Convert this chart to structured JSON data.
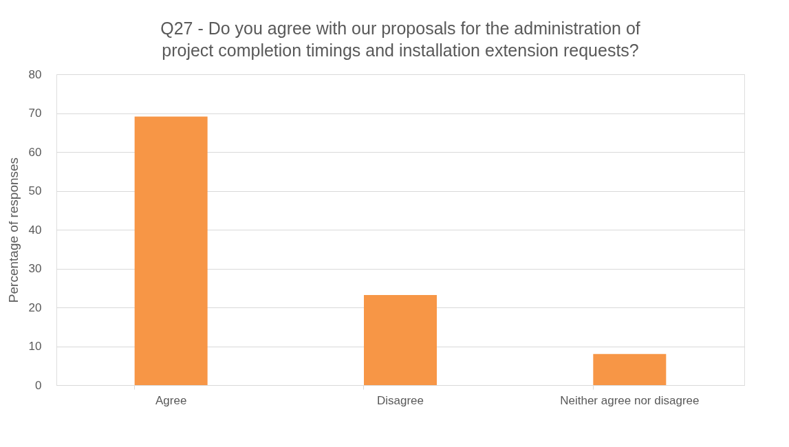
{
  "chart_data": {
    "type": "bar",
    "title": "Q27 - Do you agree with our proposals for the administration of project completion timings and installation extension requests?",
    "ylabel": "Percentage of responses",
    "categories": [
      "Agree",
      "Disagree",
      "Neither agree nor disagree"
    ],
    "values": [
      69.1,
      23.2,
      8.0
    ],
    "color": "#f79646",
    "ylim": [
      0,
      80
    ],
    "yticks": [
      0,
      10,
      20,
      30,
      40,
      50,
      60,
      70,
      80
    ],
    "grid": "y"
  }
}
